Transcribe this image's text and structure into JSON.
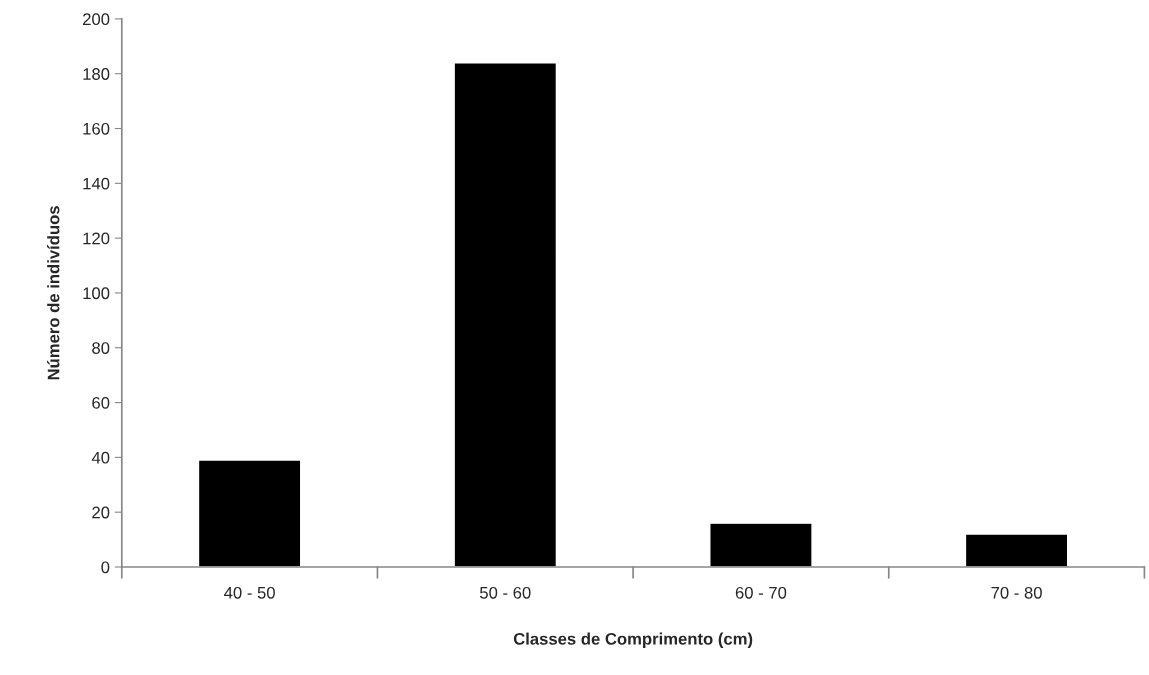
{
  "chart_data": {
    "type": "bar",
    "xlabel": "Classes de Comprimento (cm)",
    "ylabel": "Número de indivíduos",
    "categories": [
      "40 - 50",
      "50 - 60",
      "60 - 70",
      "70 - 80"
    ],
    "values": [
      39,
      184,
      16,
      12
    ],
    "color": "#000000",
    "ylim": [
      0,
      200
    ],
    "yticks": [
      0,
      20,
      40,
      60,
      80,
      100,
      120,
      140,
      160,
      180,
      200
    ],
    "grid": false,
    "legend": false
  }
}
